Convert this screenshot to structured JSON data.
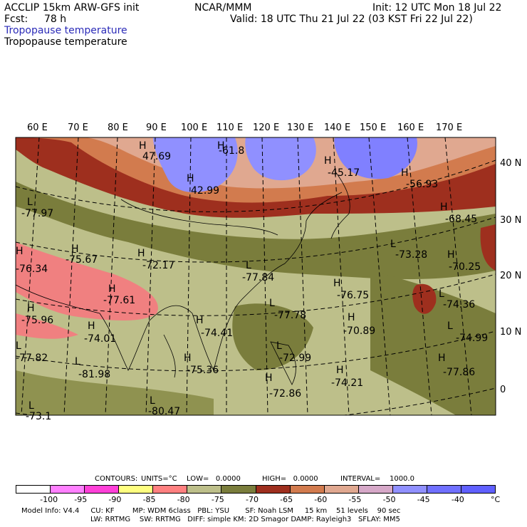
{
  "header": {
    "model": "ACCLIP 15km ARW-GFS init",
    "org": "NCAR/MMM",
    "init": "Init: 12 UTC Mon 18 Jul 22",
    "fcst_label": "Fcst:",
    "fcst_value": "78 h",
    "valid": "Valid: 18 UTC Thu 21 Jul 22 (03 KST Fri 22 Jul 22)",
    "field1": "Tropopause temperature",
    "field2": "Tropopause temperature"
  },
  "map": {
    "lon_labels": [
      "60 E",
      "70 E",
      "80 E",
      "90 E",
      "100 E",
      "110 E",
      "120 E",
      "130 E",
      "140 E",
      "150 E",
      "160 E",
      "170 E"
    ],
    "lat_labels": [
      "40 N",
      "30 N",
      "20 N",
      "10 N",
      "0"
    ],
    "highs_lows": [
      {
        "type": "H",
        "value": "47.69"
      },
      {
        "type": "H",
        "value": "-61.8"
      },
      {
        "type": "H",
        "value": "42.99"
      },
      {
        "type": "H",
        "value": "-45.17"
      },
      {
        "type": "H",
        "value": "-56.93"
      },
      {
        "type": "L",
        "value": "-77.97"
      },
      {
        "type": "H",
        "value": "-68.45"
      },
      {
        "type": "H",
        "value": "-75.67"
      },
      {
        "type": "H",
        "value": "-72.17"
      },
      {
        "type": "L",
        "value": "-73.28"
      },
      {
        "type": "H",
        "value": "-70.25"
      },
      {
        "type": "H",
        "value": "-76.34"
      },
      {
        "type": "L",
        "value": "-77.84"
      },
      {
        "type": "H",
        "value": "-77.61"
      },
      {
        "type": "H",
        "value": "-76.75"
      },
      {
        "type": "L",
        "value": "-74.36"
      },
      {
        "type": "H",
        "value": "-75.96"
      },
      {
        "type": "L",
        "value": "-77.78"
      },
      {
        "type": "H",
        "value": "-70.89"
      },
      {
        "type": "H",
        "value": "-74.01"
      },
      {
        "type": "H",
        "value": "-74.41"
      },
      {
        "type": "L",
        "value": "-74.99"
      },
      {
        "type": "L",
        "value": "-77.82"
      },
      {
        "type": "L",
        "value": "-81.98"
      },
      {
        "type": "H",
        "value": "-75.36"
      },
      {
        "type": "L",
        "value": "-72.99"
      },
      {
        "type": "H",
        "value": "-74.21"
      },
      {
        "type": "H",
        "value": "-77.86"
      },
      {
        "type": "H",
        "value": "-72.86"
      },
      {
        "type": "L",
        "value": "-80.47"
      },
      {
        "type": "L",
        "value": "-73.1"
      }
    ]
  },
  "contours": {
    "label": "CONTOURS:",
    "units": "UNITS=°C",
    "low": "LOW=   0.0000",
    "high": "HIGH=   0.0000",
    "interval": "INTERVAL=    1000.0"
  },
  "colorbar": {
    "colors": [
      "#ffffff",
      "#ff80ff",
      "#ff40d8",
      "#ffff80",
      "#ff8080",
      "#bdbf8a",
      "#7a7d3c",
      "#9e2f1e",
      "#d27b4e",
      "#e0a890",
      "#d6a8c8",
      "#9090ff",
      "#7070ff",
      "#6060ff"
    ],
    "labels": [
      "-100",
      "-95",
      "-90",
      "-85",
      "-80",
      "-75",
      "-70",
      "-65",
      "-60",
      "-55",
      "-50",
      "-45",
      "-40"
    ],
    "unit": "°C"
  },
  "footer": {
    "line1": "Model Info: V4.4     CU: KF        MP: WDM 6class   PBL: YSU       SF: Noah LSM     15 km    51 levels    90 sec",
    "line2": "LW: RRTMG    SW: RRTMG   DIFF: simple KM: 2D Smagor DAMP: Rayleigh3   SFLAY: MM5"
  }
}
